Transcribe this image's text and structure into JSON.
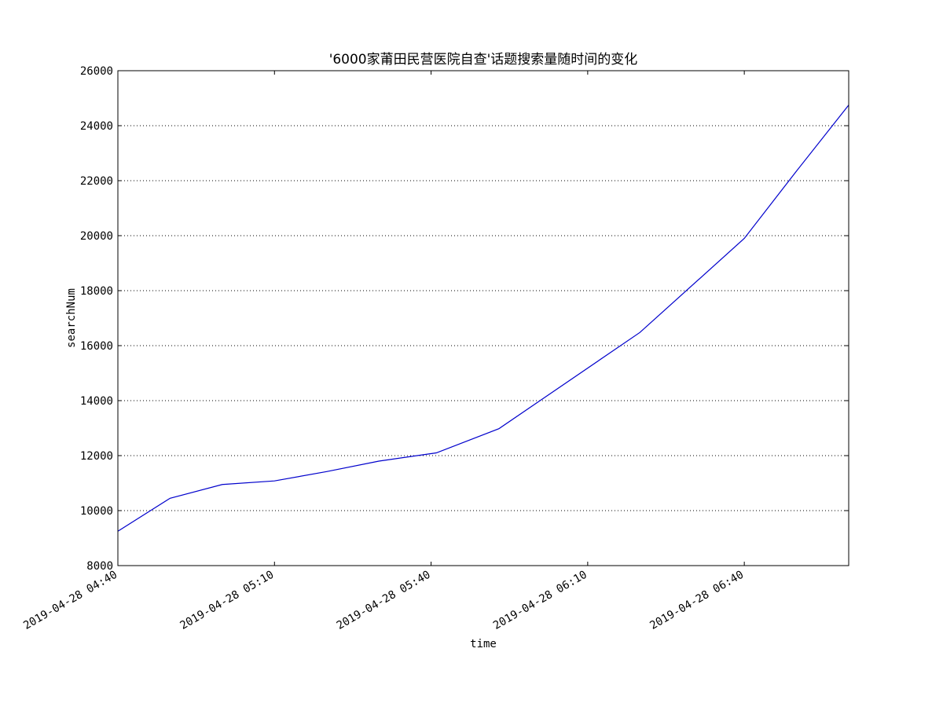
{
  "chart_data": {
    "type": "line",
    "title": "'6000家莆田民营医院自查'话题搜索量随时间的变化",
    "xlabel": "time",
    "ylabel": "searchNum",
    "x_tick_labels": [
      "2019-04-28 04:40",
      "2019-04-28 05:10",
      "2019-04-28 05:40",
      "2019-04-28 06:10",
      "2019-04-28 06:40"
    ],
    "xlim": [
      "2019-04-28 04:40",
      "2019-04-28 07:00"
    ],
    "ylim": [
      8000,
      26000
    ],
    "y_ticks": [
      8000,
      10000,
      12000,
      14000,
      16000,
      18000,
      20000,
      22000,
      24000,
      26000
    ],
    "grid": "horizontal dotted",
    "line_color": "#0000cc",
    "series": [
      {
        "x": [
          "2019-04-28 04:40",
          "2019-04-28 04:50",
          "2019-04-28 05:00",
          "2019-04-28 05:10",
          "2019-04-28 05:20",
          "2019-04-28 05:30",
          "2019-04-28 05:41",
          "2019-04-28 05:53",
          "2019-04-28 06:20",
          "2019-04-28 06:40",
          "2019-04-28 06:50",
          "2019-04-28 07:00"
        ],
        "values": [
          9250,
          10450,
          10950,
          11080,
          11420,
          11800,
          12100,
          12980,
          16480,
          19900,
          22350,
          24750
        ]
      }
    ]
  }
}
